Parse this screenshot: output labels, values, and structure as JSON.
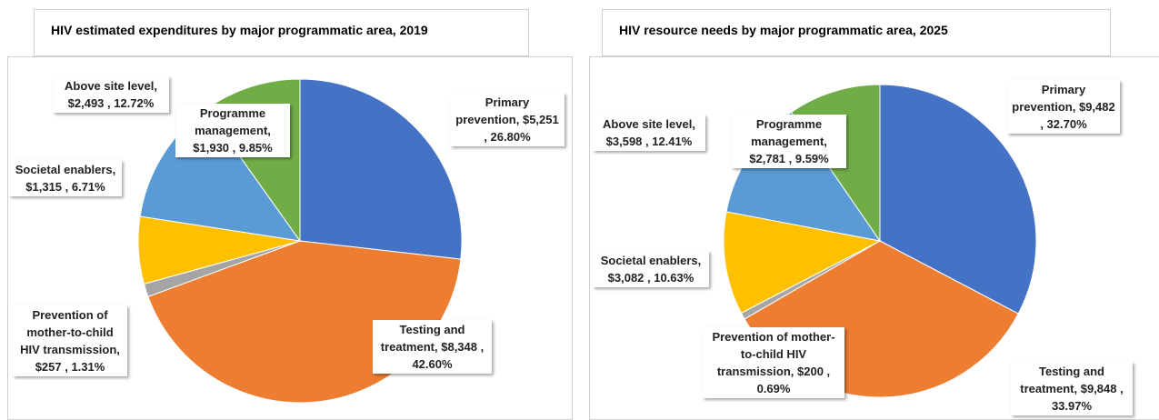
{
  "chart_data": [
    {
      "type": "pie",
      "title": "HIV estimated expenditures by major programmatic area, 2019",
      "categories": [
        "Primary prevention,",
        "Testing and treatment,",
        "Prevention of mother-to-child HIV transmission,",
        "Societal enablers,",
        "Above site level,",
        "Programme management,"
      ],
      "values": [
        5251,
        8348,
        257,
        1315,
        2493,
        1930
      ],
      "value_labels": [
        "$5,251 , 26.80%",
        "$8,348 , 42.60%",
        "$257 , 1.31%",
        "$1,315 , 6.71%",
        "$2,493 , 12.72%",
        "$1,930 , 9.85%"
      ],
      "colors": [
        "#4472c4",
        "#ed7d31",
        "#a5a5a5",
        "#ffc000",
        "#5b9bd5",
        "#70ad47"
      ]
    },
    {
      "type": "pie",
      "title": "HIV resource needs by major programmatic area, 2025",
      "categories": [
        "Primary prevention,",
        "Testing and treatment,",
        "Prevention of mother-to-child HIV transmission,",
        "Societal enablers,",
        "Above site level,",
        "Programme management,"
      ],
      "values": [
        9482,
        9848,
        200,
        3082,
        3598,
        2781
      ],
      "value_labels": [
        "$9,482 , 32.70%",
        "$9,848 , 33.97%",
        "$200 , 0.69%",
        "$3,082 , 10.63%",
        "$3,598 , 12.41%",
        "$2,781 , 9.59%"
      ],
      "colors": [
        "#4472c4",
        "#ed7d31",
        "#a5a5a5",
        "#ffc000",
        "#5b9bd5",
        "#70ad47"
      ]
    }
  ]
}
